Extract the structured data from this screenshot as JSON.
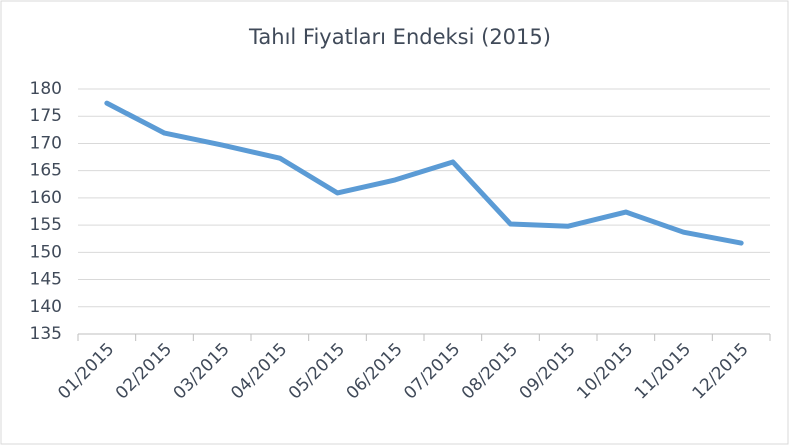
{
  "chart_data": {
    "type": "line",
    "title": "Tahıl Fiyatları Endeksi (2015)",
    "categories": [
      "01/2015",
      "02/2015",
      "03/2015",
      "04/2015",
      "05/2015",
      "06/2015",
      "07/2015",
      "08/2015",
      "09/2015",
      "10/2015",
      "11/2015",
      "12/2015"
    ],
    "series": [
      {
        "name": "Tahıl Fiyatları Endeksi",
        "color": "#5b9bd5",
        "values": [
          177.4,
          171.9,
          169.7,
          167.3,
          160.9,
          163.3,
          166.6,
          155.2,
          154.8,
          157.4,
          153.7,
          151.7
        ]
      }
    ],
    "ylim": [
      135,
      180
    ],
    "yticks": [
      135,
      140,
      145,
      150,
      155,
      160,
      165,
      170,
      175,
      180
    ],
    "grid": true
  }
}
